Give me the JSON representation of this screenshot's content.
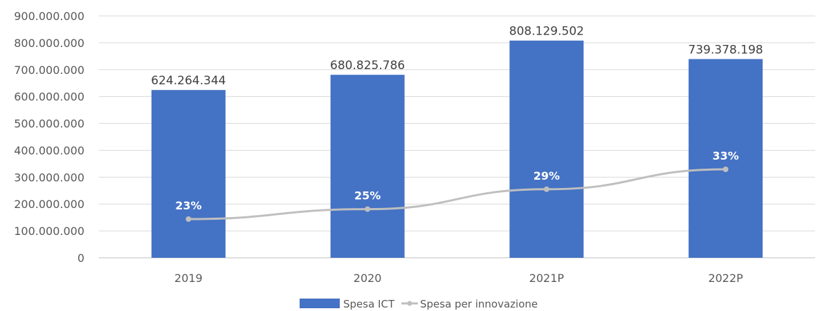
{
  "chart_data": {
    "type": "bar",
    "categories": [
      "2019",
      "2020",
      "2021P",
      "2022P"
    ],
    "series": [
      {
        "name": "Spesa ICT",
        "type": "bar",
        "values": [
          624264344,
          680825786,
          808129502,
          739378198
        ],
        "labels": [
          "624.264.344",
          "680.825.786",
          "808.129.502",
          "739.378.198"
        ],
        "color": "#4472C4"
      },
      {
        "name": "Spesa per innovazione",
        "type": "line",
        "values": [
          23,
          25,
          29,
          33
        ],
        "labels": [
          "23%",
          "25%",
          "29%",
          "33%"
        ],
        "color": "#BFBFBF"
      }
    ],
    "ylim": [
      0,
      900000000
    ],
    "yticks": [
      "0",
      "100.000.000",
      "200.000.000",
      "300.000.000",
      "400.000.000",
      "500.000.000",
      "600.000.000",
      "700.000.000",
      "800.000.000",
      "900.000.000"
    ],
    "grid": true,
    "legend_position": "bottom",
    "grid_color": "#D9D9D9"
  }
}
